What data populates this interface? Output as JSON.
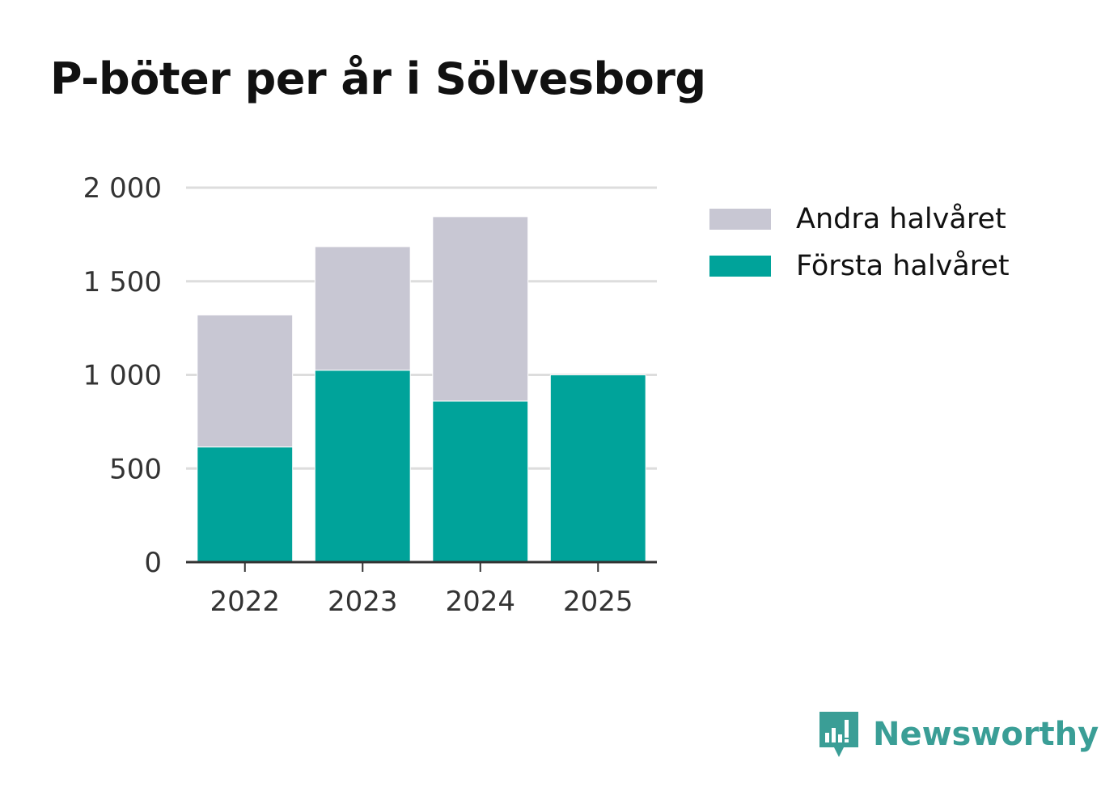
{
  "title": "P-böter per år i Sölvesborg",
  "brand": {
    "name": "Newsworthy",
    "icon": "newsworthy-logo-icon",
    "color": "#3a9e96"
  },
  "colors": {
    "first_half": "#00a39a",
    "second_half": "#c8c7d3",
    "grid": "#dddddd",
    "axis": "#333333"
  },
  "chart_data": {
    "type": "bar",
    "stacked": true,
    "categories": [
      "2022",
      "2023",
      "2024",
      "2025"
    ],
    "series": [
      {
        "name": "Första halvåret",
        "values": [
          615,
          1025,
          860,
          1000
        ],
        "color": "#00a39a"
      },
      {
        "name": "Andra halvåret",
        "values": [
          705,
          660,
          985,
          0
        ],
        "color": "#c8c7d3"
      }
    ],
    "ylim": [
      0,
      2000
    ],
    "yticks": [
      0,
      500,
      1000,
      1500,
      2000
    ],
    "ytick_labels": [
      "0",
      "500",
      "1 000",
      "1 500",
      "2 000"
    ],
    "grid": true,
    "legend": {
      "placement": "right",
      "entries": [
        "Andra halvåret",
        "Första halvåret"
      ]
    }
  }
}
